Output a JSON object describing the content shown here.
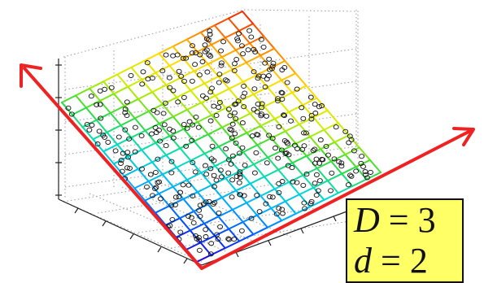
{
  "label": {
    "top": {
      "symbol": "D",
      "relation": " = ",
      "value": "3"
    },
    "bottom": {
      "symbol": "d",
      "relation": " = ",
      "value": "2"
    }
  },
  "manifold": {
    "grid_divisions": 13,
    "color_scale": [
      "#2a00cc",
      "#0044ff",
      "#00aaff",
      "#00ddcc",
      "#33dd33",
      "#ccee00",
      "#ffdd00",
      "#ff8800",
      "#ee2200"
    ]
  },
  "arrow_color": "#ee2222",
  "point_color": "#111111",
  "label_box_color": "#ffff66"
}
